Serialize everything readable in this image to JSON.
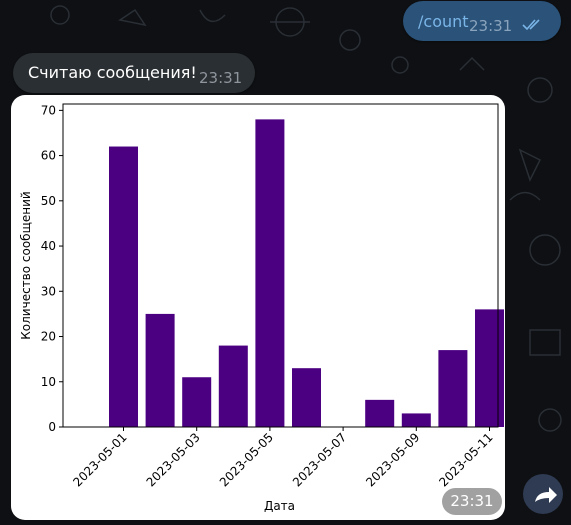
{
  "chat": {
    "outgoing": {
      "text": "/count",
      "time": "23:31",
      "status_icon": "double-check-icon"
    },
    "incoming": {
      "text": "Считаю сообщения!",
      "time": "23:31"
    },
    "photo_time": "23:31",
    "forward_icon": "forward-arrow-icon"
  },
  "colors": {
    "background": "#0e1013",
    "outgoing_bubble": "#2b5278",
    "incoming_bubble": "#2a2f33",
    "bar": "#4b0082"
  },
  "chart_data": {
    "type": "bar",
    "title": "",
    "xlabel": "Дата",
    "ylabel": "Количество сообщений",
    "categories": [
      "2023-05-01",
      "2023-05-02",
      "2023-05-03",
      "2023-05-04",
      "2023-05-05",
      "2023-05-06",
      "2023-05-07",
      "2023-05-08",
      "2023-05-09",
      "2023-05-10",
      "2023-05-11"
    ],
    "values": [
      62,
      25,
      11,
      18,
      68,
      13,
      0,
      6,
      3,
      17,
      26
    ],
    "xticks": [
      "2023-05-01",
      "2023-05-03",
      "2023-05-05",
      "2023-05-07",
      "2023-05-09",
      "2023-05-11"
    ],
    "yticks": [
      0,
      10,
      20,
      30,
      40,
      50,
      60,
      70
    ],
    "ylim": [
      0,
      71.4
    ],
    "grid": false
  }
}
